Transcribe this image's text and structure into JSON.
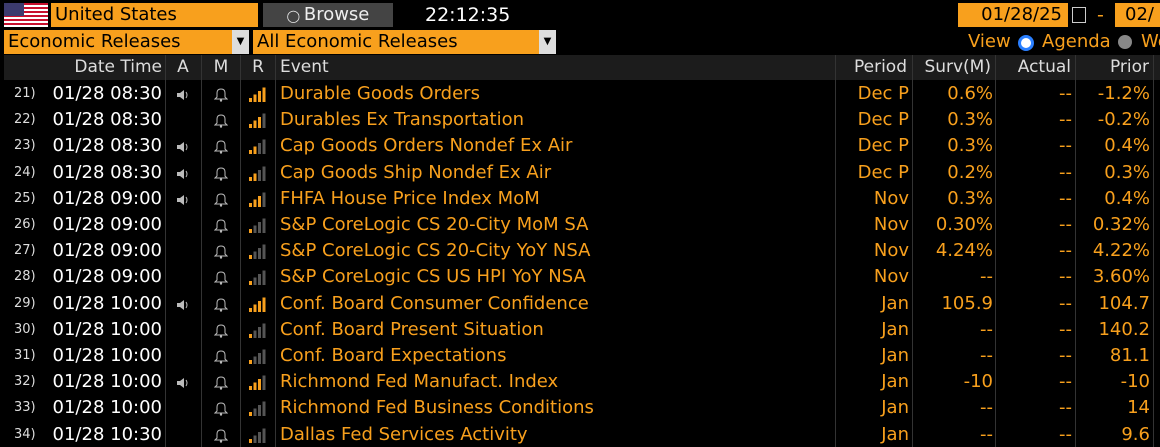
{
  "header": {
    "country": "United States",
    "browse": "Browse",
    "time": "22:12:35",
    "date_from": "01/28/25",
    "date_sep": "-",
    "date_to": "02/"
  },
  "filters": {
    "source": "Economic Releases",
    "category": "All Economic Releases",
    "view_label": "View",
    "view_option_1": "Agenda",
    "view_option_2": "We"
  },
  "table": {
    "columns": [
      "Date Time",
      "A",
      "M",
      "R",
      "Event",
      "Period",
      "Surv(M)",
      "Actual",
      "Prior"
    ],
    "rows": [
      [
        "21)",
        "01/28 08:30",
        "Durable Goods Orders",
        "Dec P",
        "0.6%",
        "--",
        "-1.2%"
      ],
      [
        "22)",
        "01/28 08:30",
        "Durables Ex Transportation",
        "Dec P",
        "0.3%",
        "--",
        "-0.2%"
      ],
      [
        "23)",
        "01/28 08:30",
        "Cap Goods Orders Nondef Ex Air",
        "Dec P",
        "0.3%",
        "--",
        "0.4%"
      ],
      [
        "24)",
        "01/28 08:30",
        "Cap Goods Ship Nondef Ex Air",
        "Dec P",
        "0.2%",
        "--",
        "0.3%"
      ],
      [
        "25)",
        "01/28 09:00",
        "FHFA House Price Index MoM",
        "Nov",
        "0.3%",
        "--",
        "0.4%"
      ],
      [
        "26)",
        "01/28 09:00",
        "S&P CoreLogic CS 20-City MoM SA",
        "Nov",
        "0.30%",
        "--",
        "0.32%"
      ],
      [
        "27)",
        "01/28 09:00",
        "S&P CoreLogic CS 20-City YoY NSA",
        "Nov",
        "4.24%",
        "--",
        "4.22%"
      ],
      [
        "28)",
        "01/28 09:00",
        "S&P CoreLogic CS US HPI YoY NSA",
        "Nov",
        "--",
        "--",
        "3.60%"
      ],
      [
        "29)",
        "01/28 10:00",
        "Conf. Board Consumer Confidence",
        "Jan",
        "105.9",
        "--",
        "104.7"
      ],
      [
        "30)",
        "01/28 10:00",
        "Conf. Board Present Situation",
        "Jan",
        "--",
        "--",
        "140.2"
      ],
      [
        "31)",
        "01/28 10:00",
        "Conf. Board Expectations",
        "Jan",
        "--",
        "--",
        "81.1"
      ],
      [
        "32)",
        "01/28 10:00",
        "Richmond Fed Manufact. Index",
        "Jan",
        "-10",
        "--",
        "-10"
      ],
      [
        "33)",
        "01/28 10:00",
        "Richmond Fed Business Conditions",
        "Jan",
        "--",
        "--",
        "14"
      ],
      [
        "34)",
        "01/28 10:30",
        "Dallas Fed Services Activity",
        "Jan",
        "--",
        "--",
        "9.6"
      ]
    ]
  }
}
